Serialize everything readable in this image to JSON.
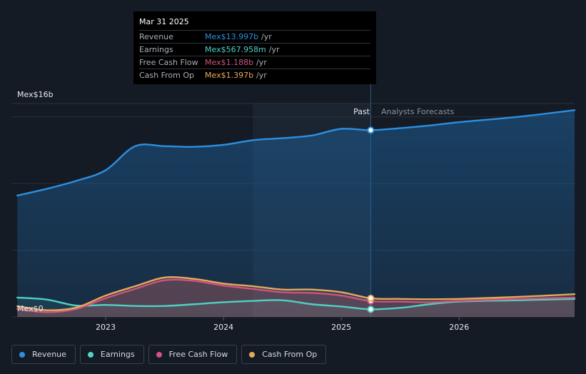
{
  "chart_data": {
    "type": "area",
    "y_unit_label": "Mex$16b",
    "y_zero_label": "Mex$0",
    "ylim": [
      0,
      16
    ],
    "y_gridlines": [
      0,
      5,
      10,
      15,
      16
    ],
    "x_ticks": [
      {
        "label": "2023",
        "t": 2023.0
      },
      {
        "label": "2024",
        "t": 2024.0
      },
      {
        "label": "2025",
        "t": 2025.0
      },
      {
        "label": "2026",
        "t": 2026.0
      }
    ],
    "xlim": [
      2022.2,
      2026.98
    ],
    "past_label": "Past",
    "forecast_label": "Analysts Forecasts",
    "divider_t": 2025.25,
    "highlight_start_t": 2024.25,
    "series": [
      {
        "name": "Revenue",
        "color": "#2d8fe0",
        "points": [
          [
            2022.25,
            9.1
          ],
          [
            2022.5,
            9.6
          ],
          [
            2022.75,
            10.2
          ],
          [
            2023.0,
            11.0
          ],
          [
            2023.25,
            12.8
          ],
          [
            2023.5,
            12.8
          ],
          [
            2023.75,
            12.75
          ],
          [
            2024.0,
            12.9
          ],
          [
            2024.25,
            13.25
          ],
          [
            2024.5,
            13.4
          ],
          [
            2024.75,
            13.6
          ],
          [
            2025.0,
            14.1
          ],
          [
            2025.25,
            13.997
          ],
          [
            2025.5,
            14.15
          ],
          [
            2025.75,
            14.35
          ],
          [
            2026.0,
            14.6
          ],
          [
            2026.5,
            15.0
          ],
          [
            2026.98,
            15.5
          ]
        ]
      },
      {
        "name": "Earnings",
        "color": "#4fd1c5",
        "points": [
          [
            2022.25,
            1.45
          ],
          [
            2022.5,
            1.3
          ],
          [
            2022.75,
            0.85
          ],
          [
            2023.0,
            0.9
          ],
          [
            2023.25,
            0.82
          ],
          [
            2023.5,
            0.82
          ],
          [
            2023.75,
            0.95
          ],
          [
            2024.0,
            1.1
          ],
          [
            2024.25,
            1.2
          ],
          [
            2024.5,
            1.25
          ],
          [
            2024.75,
            0.95
          ],
          [
            2025.0,
            0.78
          ],
          [
            2025.25,
            0.568
          ],
          [
            2025.5,
            0.68
          ],
          [
            2025.75,
            0.95
          ],
          [
            2026.0,
            1.15
          ],
          [
            2026.5,
            1.25
          ],
          [
            2026.98,
            1.35
          ]
        ]
      },
      {
        "name": "Free Cash Flow",
        "color": "#d0547f",
        "points": [
          [
            2022.25,
            0.6
          ],
          [
            2022.5,
            0.35
          ],
          [
            2022.75,
            0.6
          ],
          [
            2023.0,
            1.4
          ],
          [
            2023.25,
            2.1
          ],
          [
            2023.5,
            2.75
          ],
          [
            2023.75,
            2.7
          ],
          [
            2024.0,
            2.35
          ],
          [
            2024.25,
            2.1
          ],
          [
            2024.5,
            1.85
          ],
          [
            2024.75,
            1.8
          ],
          [
            2025.0,
            1.6
          ],
          [
            2025.25,
            1.188
          ],
          [
            2025.5,
            1.15
          ],
          [
            2025.75,
            1.1
          ],
          [
            2026.0,
            1.2
          ],
          [
            2026.5,
            1.35
          ],
          [
            2026.98,
            1.45
          ]
        ]
      },
      {
        "name": "Cash From Op",
        "color": "#e8a85c",
        "points": [
          [
            2022.25,
            0.8
          ],
          [
            2022.5,
            0.5
          ],
          [
            2022.75,
            0.7
          ],
          [
            2023.0,
            1.6
          ],
          [
            2023.25,
            2.3
          ],
          [
            2023.5,
            2.95
          ],
          [
            2023.75,
            2.85
          ],
          [
            2024.0,
            2.5
          ],
          [
            2024.25,
            2.3
          ],
          [
            2024.5,
            2.05
          ],
          [
            2024.75,
            2.05
          ],
          [
            2025.0,
            1.85
          ],
          [
            2025.25,
            1.397
          ],
          [
            2025.5,
            1.35
          ],
          [
            2025.75,
            1.32
          ],
          [
            2026.0,
            1.35
          ],
          [
            2026.5,
            1.5
          ],
          [
            2026.98,
            1.7
          ]
        ]
      }
    ]
  },
  "tooltip": {
    "date": "Mar 31 2025",
    "unit": "/yr",
    "rows": [
      {
        "label": "Revenue",
        "value": "Mex$13.997b",
        "color": "#2d8fe0"
      },
      {
        "label": "Earnings",
        "value": "Mex$567.958m",
        "color": "#4fd1c5"
      },
      {
        "label": "Free Cash Flow",
        "value": "Mex$1.188b",
        "color": "#d0547f"
      },
      {
        "label": "Cash From Op",
        "value": "Mex$1.397b",
        "color": "#e8a85c"
      }
    ]
  },
  "legend": [
    {
      "label": "Revenue",
      "color": "#2d8fe0"
    },
    {
      "label": "Earnings",
      "color": "#4fd1c5"
    },
    {
      "label": "Free Cash Flow",
      "color": "#d0547f"
    },
    {
      "label": "Cash From Op",
      "color": "#e8a85c"
    }
  ]
}
